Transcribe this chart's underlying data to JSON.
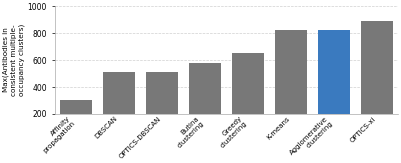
{
  "categories": [
    "Affinity\npropagation",
    "DBSCAN",
    "OPTICS-DBSCAN",
    "Butina\nclustering",
    "Greedy\nclustering",
    "K-means",
    "Agglomerative\nclustering",
    "OPTICS-xi"
  ],
  "values": [
    305,
    510,
    510,
    575,
    650,
    820,
    820,
    890
  ],
  "bar_colors": [
    "#787878",
    "#787878",
    "#787878",
    "#787878",
    "#787878",
    "#787878",
    "#3a7abf",
    "#787878"
  ],
  "ylabel": "Max(Antibodies in\nconsistent multiple-\noccupancy clusters)",
  "ylim": [
    200,
    1000
  ],
  "yticks": [
    200,
    400,
    600,
    800,
    1000
  ],
  "grid_color": "#d0d0d0",
  "background_color": "#ffffff",
  "bar_width": 0.75
}
